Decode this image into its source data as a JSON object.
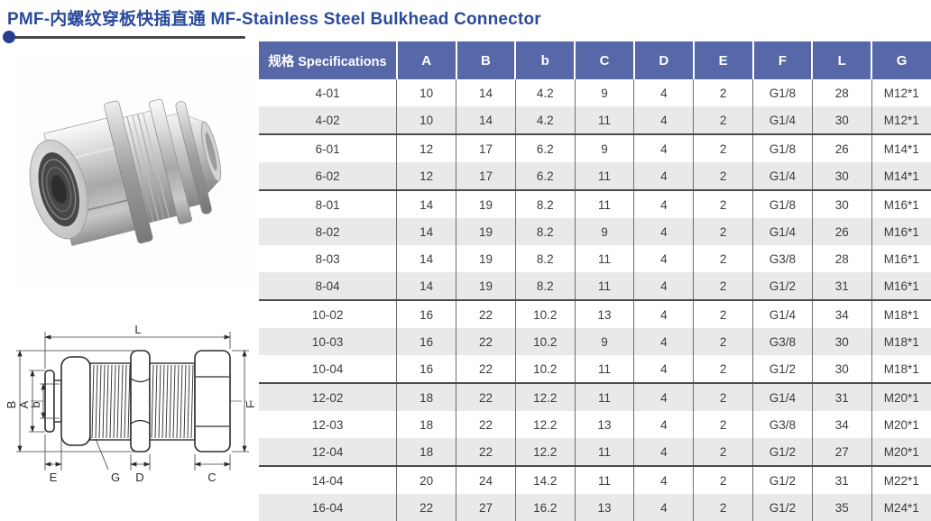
{
  "page": {
    "title": "PMF-内螺纹穿板快插直通 MF-Stainless Steel Bulkhead Connector",
    "title_color": "#2b4a9b",
    "accent_line_color": "#474747",
    "accent_dot_color": "#2b3e8e"
  },
  "photo": {
    "description": "stainless steel bulkhead push-in connector product photo"
  },
  "drawing": {
    "labels": {
      "L": "L",
      "B": "B",
      "A": "A",
      "b": "b",
      "F": "F",
      "E": "E",
      "G": "G",
      "D": "D",
      "C": "C"
    }
  },
  "table": {
    "header_bg": "#5668a8",
    "alt_row_bg": "#e9e9e9",
    "group_separator_color": "#4a4a4a",
    "columns": [
      "规格 Specifications",
      "A",
      "B",
      "b",
      "C",
      "D",
      "E",
      "F",
      "L",
      "G"
    ],
    "rows": [
      [
        "4-01",
        "10",
        "14",
        "4.2",
        "9",
        "4",
        "2",
        "G1/8",
        "28",
        "M12*1"
      ],
      [
        "4-02",
        "10",
        "14",
        "4.2",
        "11",
        "4",
        "2",
        "G1/4",
        "30",
        "M12*1"
      ],
      [
        "6-01",
        "12",
        "17",
        "6.2",
        "9",
        "4",
        "2",
        "G1/8",
        "26",
        "M14*1"
      ],
      [
        "6-02",
        "12",
        "17",
        "6.2",
        "11",
        "4",
        "2",
        "G1/4",
        "30",
        "M14*1"
      ],
      [
        "8-01",
        "14",
        "19",
        "8.2",
        "11",
        "4",
        "2",
        "G1/8",
        "30",
        "M16*1"
      ],
      [
        "8-02",
        "14",
        "19",
        "8.2",
        "9",
        "4",
        "2",
        "G1/4",
        "26",
        "M16*1"
      ],
      [
        "8-03",
        "14",
        "19",
        "8.2",
        "11",
        "4",
        "2",
        "G3/8",
        "28",
        "M16*1"
      ],
      [
        "8-04",
        "14",
        "19",
        "8.2",
        "11",
        "4",
        "2",
        "G1/2",
        "31",
        "M16*1"
      ],
      [
        "10-02",
        "16",
        "22",
        "10.2",
        "13",
        "4",
        "2",
        "G1/4",
        "34",
        "M18*1"
      ],
      [
        "10-03",
        "16",
        "22",
        "10.2",
        "9",
        "4",
        "2",
        "G3/8",
        "30",
        "M18*1"
      ],
      [
        "10-04",
        "16",
        "22",
        "10.2",
        "11",
        "4",
        "2",
        "G1/2",
        "30",
        "M18*1"
      ],
      [
        "12-02",
        "18",
        "22",
        "12.2",
        "11",
        "4",
        "2",
        "G1/4",
        "31",
        "M20*1"
      ],
      [
        "12-03",
        "18",
        "22",
        "12.2",
        "13",
        "4",
        "2",
        "G3/8",
        "34",
        "M20*1"
      ],
      [
        "12-04",
        "18",
        "22",
        "12.2",
        "11",
        "4",
        "2",
        "G1/2",
        "27",
        "M20*1"
      ],
      [
        "14-04",
        "20",
        "24",
        "14.2",
        "11",
        "4",
        "2",
        "G1/2",
        "31",
        "M22*1"
      ],
      [
        "16-04",
        "22",
        "27",
        "16.2",
        "13",
        "4",
        "2",
        "G1/2",
        "35",
        "M24*1"
      ]
    ],
    "group_start_indices": [
      2,
      4,
      8,
      11,
      14
    ]
  }
}
